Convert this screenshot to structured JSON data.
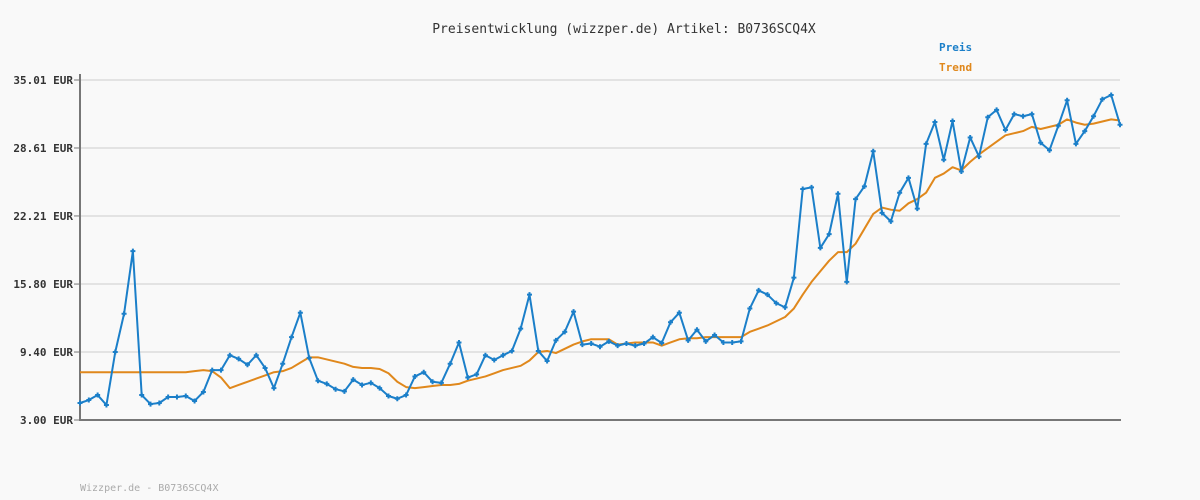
{
  "chart_data": {
    "type": "line",
    "title": "Preisentwicklung (wizzper.de) Artikel: B0736SCQ4X",
    "xlabel": "",
    "ylabel": "",
    "ylim": [
      3.0,
      35.01
    ],
    "y_ticks": [
      "35.01 EUR",
      "28.61 EUR",
      "22.21 EUR",
      "15.80 EUR",
      "9.40 EUR",
      "3.00 EUR"
    ],
    "y_tick_values": [
      35.01,
      28.61,
      22.21,
      15.8,
      9.4,
      3.0
    ],
    "grid": true,
    "legend_position": "top-right",
    "series": [
      {
        "name": "Preis",
        "color": "#1b7fc9",
        "markers": true,
        "values": [
          4.6,
          4.88,
          5.35,
          4.41,
          9.4,
          13.0,
          18.9,
          5.35,
          4.5,
          4.6,
          5.17,
          5.17,
          5.26,
          4.79,
          5.64,
          7.7,
          7.7,
          9.1,
          8.75,
          8.2,
          9.1,
          7.9,
          6.0,
          8.3,
          10.8,
          13.1,
          8.85,
          6.7,
          6.4,
          5.9,
          5.7,
          6.8,
          6.3,
          6.5,
          6.0,
          5.26,
          5.0,
          5.35,
          7.1,
          7.5,
          6.6,
          6.5,
          8.3,
          10.3,
          7.0,
          7.3,
          9.1,
          8.65,
          9.1,
          9.5,
          11.6,
          14.8,
          9.5,
          8.55,
          10.5,
          11.3,
          13.2,
          10.1,
          10.2,
          9.9,
          10.4,
          10.0,
          10.2,
          10.0,
          10.2,
          10.8,
          10.25,
          12.2,
          13.1,
          10.5,
          11.5,
          10.4,
          11.0,
          10.3,
          10.3,
          10.4,
          13.5,
          15.2,
          14.8,
          14.0,
          13.6,
          16.4,
          24.75,
          24.9,
          19.2,
          20.5,
          24.3,
          16.0,
          23.8,
          25.0,
          28.3,
          22.5,
          21.7,
          24.4,
          25.8,
          22.9,
          29.0,
          31.05,
          27.5,
          31.15,
          26.4,
          29.6,
          27.8,
          31.5,
          32.2,
          30.3,
          31.8,
          31.6,
          31.8,
          29.1,
          28.4,
          30.7,
          33.1,
          29.0,
          30.2,
          31.6,
          33.2,
          33.6,
          30.8
        ]
      },
      {
        "name": "Trend",
        "color": "#e0881c",
        "markers": false,
        "values": [
          7.5,
          7.5,
          7.5,
          7.5,
          7.5,
          7.5,
          7.5,
          7.5,
          7.5,
          7.5,
          7.5,
          7.5,
          7.5,
          7.6,
          7.7,
          7.6,
          7.0,
          6.0,
          6.3,
          6.6,
          6.9,
          7.2,
          7.5,
          7.6,
          7.9,
          8.4,
          8.9,
          8.9,
          8.7,
          8.5,
          8.3,
          8.0,
          7.9,
          7.9,
          7.8,
          7.4,
          6.6,
          6.1,
          6.0,
          6.1,
          6.2,
          6.3,
          6.3,
          6.4,
          6.7,
          6.9,
          7.1,
          7.4,
          7.7,
          7.9,
          8.1,
          8.6,
          9.4,
          9.5,
          9.3,
          9.7,
          10.1,
          10.4,
          10.6,
          10.6,
          10.6,
          10.1,
          10.2,
          10.3,
          10.3,
          10.3,
          10.0,
          10.3,
          10.6,
          10.7,
          10.7,
          10.8,
          10.8,
          10.8,
          10.8,
          10.8,
          11.3,
          11.6,
          11.9,
          12.3,
          12.7,
          13.5,
          14.8,
          16.0,
          17.0,
          18.0,
          18.8,
          18.8,
          19.6,
          21.0,
          22.4,
          23.0,
          22.8,
          22.7,
          23.4,
          23.8,
          24.4,
          25.8,
          26.2,
          26.8,
          26.5,
          27.3,
          28.0,
          28.6,
          29.2,
          29.8,
          30.0,
          30.2,
          30.6,
          30.4,
          30.6,
          30.8,
          31.3,
          31.0,
          30.8,
          30.9,
          31.1,
          31.3,
          31.2
        ]
      }
    ]
  },
  "legend": {
    "preis": "Preis",
    "trend": "Trend"
  },
  "footer": "Wizzper.de - B0736SCQ4X"
}
